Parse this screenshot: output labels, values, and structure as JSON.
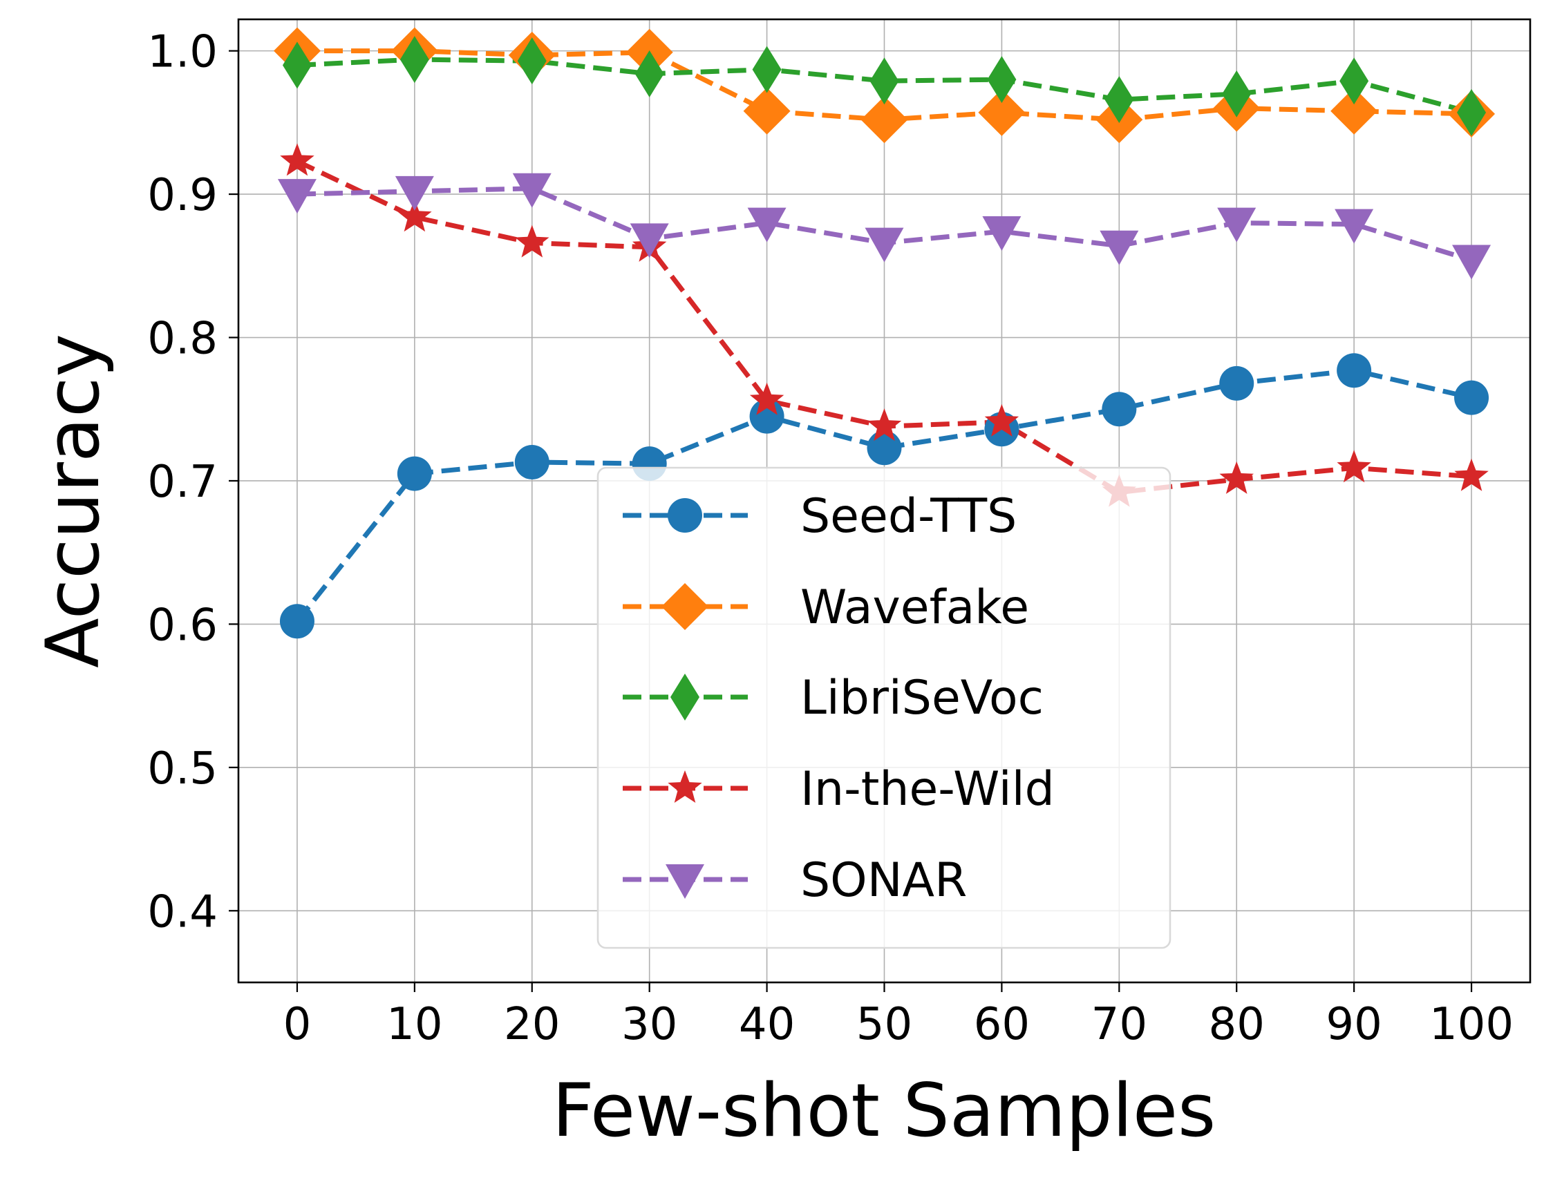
{
  "chart_data": {
    "type": "line",
    "title": "",
    "xlabel": "Few-shot Samples",
    "ylabel": "Accuracy",
    "x": [
      0,
      10,
      20,
      30,
      40,
      50,
      60,
      70,
      80,
      90,
      100
    ],
    "xticks": [
      "0",
      "10",
      "20",
      "30",
      "40",
      "50",
      "60",
      "70",
      "80",
      "90",
      "100"
    ],
    "yticks": [
      "0.4",
      "0.5",
      "0.6",
      "0.7",
      "0.8",
      "0.9",
      "1.0"
    ],
    "xlim": [
      -5,
      105
    ],
    "ylim": [
      0.35,
      1.022
    ],
    "grid": true,
    "legend_position": "lower-center",
    "series": [
      {
        "name": "Seed-TTS",
        "color": "#1f77b4",
        "marker": "circle",
        "values": [
          0.602,
          0.705,
          0.713,
          0.712,
          0.745,
          0.723,
          0.736,
          0.75,
          0.768,
          0.777,
          0.758
        ]
      },
      {
        "name": "Wavefake",
        "color": "#ff7f0e",
        "marker": "diamond",
        "values": [
          1.0,
          1.0,
          0.997,
          0.999,
          0.958,
          0.952,
          0.957,
          0.952,
          0.96,
          0.958,
          0.956
        ]
      },
      {
        "name": "LibriSeVoc",
        "color": "#2ca02c",
        "marker": "thin-diamond",
        "values": [
          0.99,
          0.994,
          0.993,
          0.984,
          0.987,
          0.979,
          0.98,
          0.966,
          0.97,
          0.979,
          0.957
        ]
      },
      {
        "name": "In-the-Wild",
        "color": "#d62728",
        "marker": "star",
        "values": [
          0.923,
          0.884,
          0.866,
          0.863,
          0.756,
          0.738,
          0.741,
          0.692,
          0.701,
          0.709,
          0.703
        ]
      },
      {
        "name": "SONAR",
        "color": "#9467bd",
        "marker": "triangle-down",
        "values": [
          0.9,
          0.902,
          0.904,
          0.869,
          0.88,
          0.866,
          0.874,
          0.864,
          0.88,
          0.879,
          0.854
        ]
      }
    ]
  }
}
